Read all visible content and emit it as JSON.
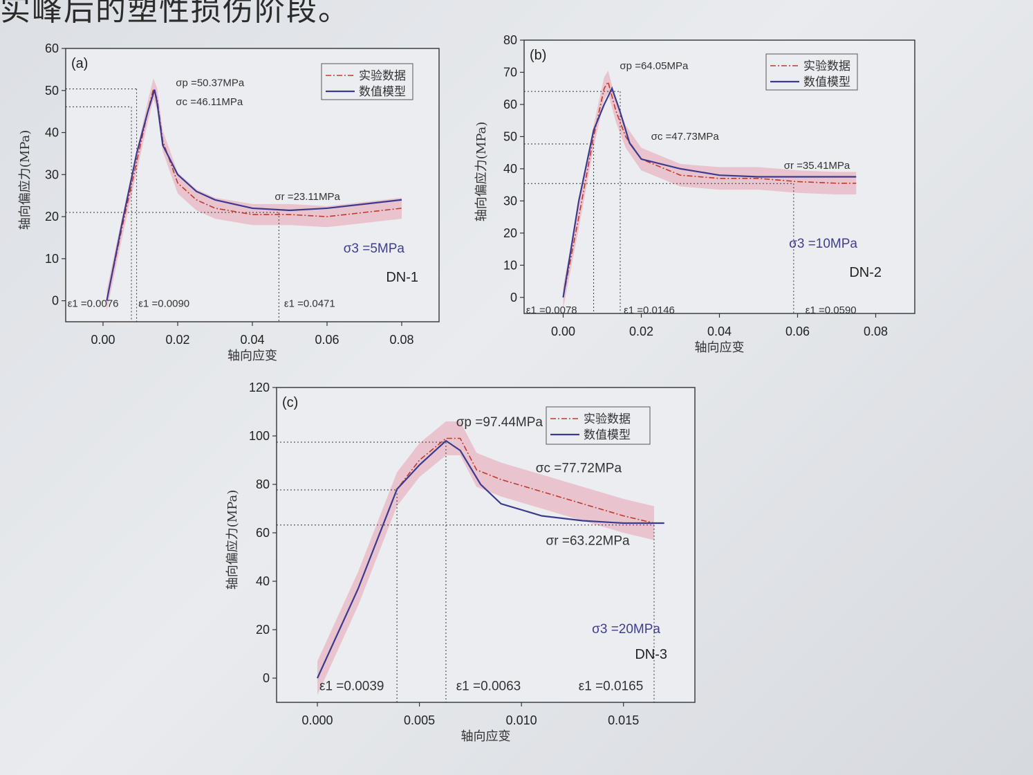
{
  "caption": "实峰后的塑性损伤阶段。",
  "colors": {
    "experiment": "#c0392b",
    "model": "#3b3a8c",
    "band": "#e8a3b4"
  },
  "chart_data": [
    {
      "id": "a",
      "type": "line",
      "panel_label": "(a)",
      "xlabel": "轴向应变",
      "ylabel": "轴向偏应力(MPa)",
      "xlim": [
        -0.01,
        0.09
      ],
      "ylim": [
        -5,
        60
      ],
      "xticks": [
        0.0,
        0.02,
        0.04,
        0.06,
        0.08
      ],
      "xtick_labels": [
        "0.00",
        "0.02",
        "0.04",
        "0.06",
        "0.08"
      ],
      "yticks": [
        0,
        10,
        20,
        30,
        40,
        50,
        60
      ],
      "ytick_labels": [
        "0",
        "10",
        "20",
        "30",
        "40",
        "50",
        "60"
      ],
      "legend": [
        "实验数据",
        "数值模型"
      ],
      "legend_position": "top-right",
      "confining": "σ3 =5MPa",
      "specimen": "DN-1",
      "series": [
        {
          "name": "实验数据",
          "style": "dash-dot",
          "x": [
            0.001,
            0.005,
            0.009,
            0.012,
            0.0135,
            0.0145,
            0.016,
            0.02,
            0.025,
            0.03,
            0.04,
            0.05,
            0.06,
            0.07,
            0.08
          ],
          "y": [
            0,
            17,
            33,
            45,
            50.4,
            48,
            38,
            28,
            24,
            22,
            20.5,
            20.5,
            20,
            21,
            22
          ]
        },
        {
          "name": "数值模型",
          "style": "solid",
          "x": [
            0.001,
            0.005,
            0.009,
            0.012,
            0.0138,
            0.0145,
            0.016,
            0.02,
            0.025,
            0.03,
            0.04,
            0.05,
            0.06,
            0.07,
            0.08
          ],
          "y": [
            0,
            18,
            35,
            45,
            50.2,
            47,
            37,
            30,
            26,
            24,
            22,
            21.5,
            22,
            23,
            24
          ]
        }
      ],
      "band_series": "实验数据",
      "band_width": 2.5,
      "annotations": [
        {
          "text": "σp =50.37MPa",
          "x": 0.0195,
          "y": 51
        },
        {
          "text": "σc =46.11MPa",
          "x": 0.0195,
          "y": 46.5
        },
        {
          "text": "σr =23.11MPa",
          "x": 0.046,
          "y": 24
        },
        {
          "text": "ε1 =0.0076",
          "x": -0.0095,
          "y": -1.5
        },
        {
          "text": "ε1 =0.0090",
          "x": 0.0095,
          "y": -1.5
        },
        {
          "text": "ε1 =0.0471",
          "x": 0.0485,
          "y": -1.5
        }
      ],
      "guides": [
        {
          "x": 0.0076,
          "y": 46.11
        },
        {
          "x": 0.009,
          "y": 50.37
        },
        {
          "x": 0.0471,
          "y": 21
        }
      ]
    },
    {
      "id": "b",
      "type": "line",
      "panel_label": "(b)",
      "xlabel": "轴向应变",
      "ylabel": "轴向偏应力(MPa)",
      "xlim": [
        -0.01,
        0.09
      ],
      "ylim": [
        -5,
        80
      ],
      "xticks": [
        0.0,
        0.02,
        0.04,
        0.06,
        0.08
      ],
      "xtick_labels": [
        "0.00",
        "0.02",
        "0.04",
        "0.06",
        "0.08"
      ],
      "yticks": [
        0,
        10,
        20,
        30,
        40,
        50,
        60,
        70,
        80
      ],
      "ytick_labels": [
        "0",
        "10",
        "20",
        "30",
        "40",
        "50",
        "60",
        "70",
        "80"
      ],
      "legend": [
        "实验数据",
        "数值模型"
      ],
      "legend_position": "top-right",
      "confining": "σ3 =10MPa",
      "specimen": "DN-2",
      "series": [
        {
          "name": "实验数据",
          "style": "dash-dot",
          "x": [
            0.0,
            0.004,
            0.0078,
            0.0105,
            0.0115,
            0.0135,
            0.016,
            0.02,
            0.03,
            0.04,
            0.05,
            0.06,
            0.07,
            0.075
          ],
          "y": [
            0,
            25,
            50,
            65,
            67,
            58,
            50,
            43,
            38,
            37,
            37,
            36,
            35.5,
            35.5
          ]
        },
        {
          "name": "数值模型",
          "style": "solid",
          "x": [
            0.0,
            0.004,
            0.0078,
            0.0105,
            0.0125,
            0.0145,
            0.017,
            0.02,
            0.03,
            0.04,
            0.05,
            0.06,
            0.07,
            0.075
          ],
          "y": [
            0,
            30,
            52,
            60,
            65,
            58,
            48,
            43,
            40,
            38,
            37.5,
            37.5,
            37.5,
            37.5
          ]
        }
      ],
      "band_series": "实验数据",
      "band_width": 3.5,
      "annotations": [
        {
          "text": "σp =64.05MPa",
          "x": 0.0145,
          "y": 71
        },
        {
          "text": "σc =47.73MPa",
          "x": 0.0225,
          "y": 49
        },
        {
          "text": "σr =35.41MPa",
          "x": 0.0565,
          "y": 40
        },
        {
          "text": "ε1 =0.0078",
          "x": -0.0095,
          "y": -5
        },
        {
          "text": "ε1 =0.0146",
          "x": 0.0155,
          "y": -5
        },
        {
          "text": "ε1 =0.0590",
          "x": 0.062,
          "y": -5
        }
      ],
      "guides": [
        {
          "x": 0.0078,
          "y": 47.73
        },
        {
          "x": 0.0146,
          "y": 64.05
        },
        {
          "x": 0.059,
          "y": 35.41
        }
      ]
    },
    {
      "id": "c",
      "type": "line",
      "panel_label": "(c)",
      "xlabel": "轴向应变",
      "ylabel": "轴向偏应力(MPa)",
      "xlim": [
        -0.002,
        0.0185
      ],
      "ylim": [
        -10,
        120
      ],
      "xticks": [
        0.0,
        0.005,
        0.01,
        0.015
      ],
      "xtick_labels": [
        "0.000",
        "0.005",
        "0.010",
        "0.015"
      ],
      "yticks": [
        0,
        20,
        40,
        60,
        80,
        100,
        120
      ],
      "ytick_labels": [
        "0",
        "20",
        "40",
        "60",
        "80",
        "100",
        "120"
      ],
      "legend": [
        "实验数据",
        "数值模型"
      ],
      "legend_position": "top-right",
      "confining": "σ3 =20MPa",
      "specimen": "DN-3",
      "series": [
        {
          "name": "实验数据",
          "style": "dash-dot",
          "x": [
            0.0,
            0.002,
            0.0039,
            0.005,
            0.0063,
            0.007,
            0.0078,
            0.009,
            0.011,
            0.013,
            0.015,
            0.0165
          ],
          "y": [
            0,
            37,
            78,
            90,
            99,
            99,
            86,
            82,
            77,
            72,
            67,
            64
          ]
        },
        {
          "name": "数值模型",
          "style": "solid",
          "x": [
            0.0,
            0.002,
            0.0039,
            0.005,
            0.0063,
            0.007,
            0.008,
            0.009,
            0.011,
            0.013,
            0.015,
            0.017
          ],
          "y": [
            0,
            37,
            78,
            88,
            98,
            94,
            80,
            72,
            67,
            65,
            64,
            64
          ]
        }
      ],
      "band_series": "实验数据",
      "band_width": 7,
      "annotations": [
        {
          "text": "σp =97.44MPa",
          "x": 0.0068,
          "y": 104
        },
        {
          "text": "σc =77.72MPa",
          "x": 0.0107,
          "y": 85
        },
        {
          "text": "σr =63.22MPa",
          "x": 0.0112,
          "y": 55
        },
        {
          "text": "ε1 =0.0039",
          "x": 0.0001,
          "y": -5
        },
        {
          "text": "ε1 =0.0063",
          "x": 0.0068,
          "y": -5
        },
        {
          "text": "ε1 =0.0165",
          "x": 0.0128,
          "y": -5
        }
      ],
      "guides": [
        {
          "x": 0.0039,
          "y": 77.72
        },
        {
          "x": 0.0063,
          "y": 97.44
        },
        {
          "x": 0.0165,
          "y": 63.22
        }
      ]
    }
  ]
}
